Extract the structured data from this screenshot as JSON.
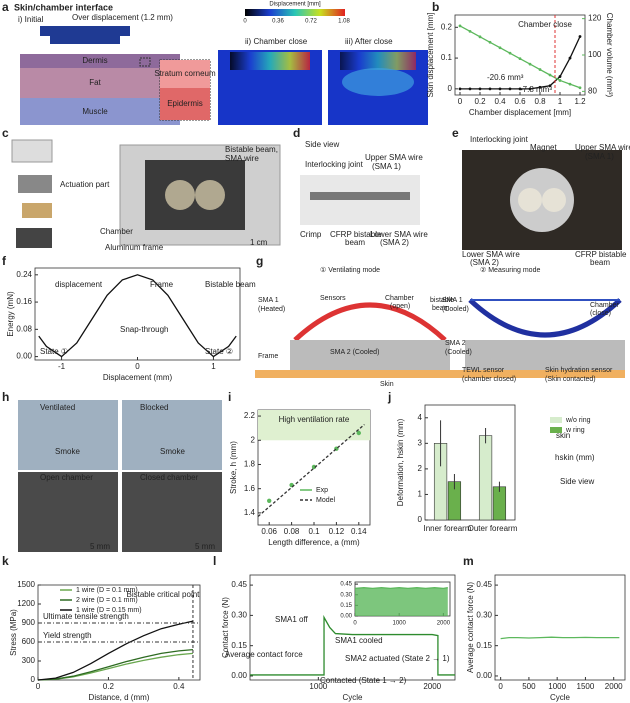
{
  "panel_labels": [
    "a",
    "b",
    "c",
    "d",
    "e",
    "f",
    "g",
    "h",
    "i",
    "j",
    "k",
    "l",
    "m"
  ],
  "a": {
    "title": "Skin/chamber interface",
    "initial": "i) Initial",
    "over": "Over displacement (1.2 mm)",
    "layers": [
      "Dermis",
      "Fat",
      "Muscle"
    ],
    "zoom": [
      "Stratum corneum",
      "Epidermis"
    ],
    "colorbar_title": "Displacement [mm]",
    "colorbar_ticks": [
      0,
      0.36,
      0.72,
      1.08
    ],
    "ii": "ii) Chamber close",
    "iii": "iii) After close"
  },
  "c": {
    "labels": [
      "Actuation part",
      "Bistable beam,",
      "SMA wire",
      "Chamber",
      "Aluminum frame",
      "1 cm"
    ]
  },
  "d": {
    "labels": [
      "Side view",
      "Interlocking joint",
      "Upper SMA wire",
      "(SMA 1)",
      "Crimp",
      "CFRP bistable",
      "beam",
      "Lower SMA wire",
      "(SMA 2)"
    ]
  },
  "e": {
    "labels": [
      "Interlocking joint",
      "Magnet",
      "Upper SMA wire",
      "(SMA 1)",
      "Lower SMA wire",
      "(SMA 2)",
      "CFRP bistable",
      "beam"
    ]
  },
  "g": {
    "labels": [
      "① Ventilating mode",
      "② Measuring mode",
      "SMA 1",
      "(Heated)",
      "Sensors",
      "Chamber",
      "(open)",
      "bistable",
      "beam",
      "SMA 2 (Cooled)",
      "Frame",
      "Skin",
      "SMA 1",
      "(Cooled)",
      "Chamber",
      "(close)",
      "SMA 2",
      "(Cooled)",
      "TEWL sensor",
      "(chamber closed)",
      "Skin hydration sensor",
      "(Skin contacted)"
    ]
  },
  "h": {
    "labels": [
      "Ventilated",
      "Blocked",
      "Smoke",
      "Smoke",
      "Open chamber",
      "Closed chamber",
      "5 mm",
      "5 mm"
    ]
  },
  "chart_data": [
    {
      "type": "line",
      "xlabel": "Chamber displacement [mm]",
      "ylabel": "Skin displacement [mm]",
      "y2label": "Chamber volume (mm³)",
      "x": [
        0,
        0.1,
        0.2,
        0.3,
        0.4,
        0.5,
        0.6,
        0.7,
        0.8,
        0.9,
        1.0,
        1.1,
        1.2
      ],
      "xlim": [
        -0.05,
        1.25
      ],
      "xticks": [
        0,
        0.2,
        0.4,
        0.6,
        0.8,
        1.0,
        1.2
      ],
      "ylim": [
        -0.02,
        0.24
      ],
      "yticks": [
        0,
        0.1,
        0.2
      ],
      "y2lim": [
        78,
        122
      ],
      "y2ticks": [
        80,
        100,
        120
      ],
      "series": [
        {
          "name": "Skin displacement",
          "color": "#111111",
          "values": [
            0,
            0,
            0,
            0,
            0,
            0,
            0,
            0,
            0.005,
            0.01,
            0.04,
            0.1,
            0.17
          ]
        },
        {
          "name": "Chamber volume",
          "color": "#5cb85c",
          "axis": "y2",
          "values": [
            116,
            113,
            110,
            107,
            104,
            101,
            98,
            95,
            92,
            89,
            86,
            84,
            82
          ]
        }
      ],
      "ref_vline": {
        "value": 0.95,
        "label": "Chamber close"
      },
      "annotations": [
        "-20.6 mm³",
        "-7.8 mm³"
      ]
    },
    {
      "type": "line",
      "xlabel": "Displacement (mm)",
      "ylabel": "Energy (mN)",
      "x": [
        -1.3,
        -1.2,
        -1.0,
        -0.8,
        -0.6,
        -0.4,
        -0.2,
        0,
        0.2,
        0.4,
        0.6,
        0.8,
        1.0,
        1.2,
        1.3
      ],
      "xlim": [
        -1.35,
        1.35
      ],
      "xticks": [
        -1,
        0,
        1
      ],
      "ylim": [
        -0.01,
        0.26
      ],
      "yticks": [
        {
          "value": 0,
          "label": "0.00"
        },
        {
          "value": 0.08,
          "label": "0.08"
        },
        {
          "value": 0.16,
          "label": "0.16"
        },
        {
          "value": 0.24,
          "label": "0.24"
        }
      ],
      "series": [
        {
          "name": "Energy",
          "color": "#111111",
          "values": [
            0.06,
            0.03,
            0.0,
            0.04,
            0.11,
            0.18,
            0.225,
            0.24,
            0.225,
            0.18,
            0.11,
            0.04,
            0.0,
            0.03,
            0.06
          ]
        }
      ],
      "annotations": [
        "displacement",
        "Frame",
        "Bistable beam",
        "Snap-through",
        "State ①",
        "State ②"
      ]
    },
    {
      "type": "scatter",
      "xlabel": "Length difference, a (mm)",
      "ylabel": "Stroke, h (mm)",
      "xlim": [
        0.05,
        0.15
      ],
      "xticks": [
        0.06,
        0.08,
        0.1,
        0.12,
        0.14
      ],
      "ylim": [
        1.3,
        2.25
      ],
      "yticks": [
        1.4,
        1.6,
        1.8,
        2.0,
        2.2
      ],
      "series": [
        {
          "name": "Exp",
          "color": "#5cb85c",
          "x": [
            0.06,
            0.08,
            0.1,
            0.12,
            0.14
          ],
          "values": [
            1.5,
            1.63,
            1.78,
            1.93,
            2.06
          ]
        },
        {
          "name": "Model",
          "color": "#333333",
          "dashed": true,
          "x": [
            0.05,
            0.145
          ],
          "values": [
            1.37,
            2.13
          ]
        }
      ],
      "ref_band": {
        "from": 2.0,
        "label": "High ventilation rate"
      },
      "legend": true
    },
    {
      "type": "bar",
      "ylabel": "Deformation, hskin (mm)",
      "categories": [
        "Inner forearm",
        "Outer forearm"
      ],
      "ylim": [
        0,
        4.5
      ],
      "yticks": [
        0,
        1,
        2,
        3,
        4
      ],
      "series": [
        {
          "name": "w/o ring",
          "color": "#d6eccc",
          "values": [
            3.0,
            3.3
          ],
          "errors": [
            0.9,
            0.3
          ]
        },
        {
          "name": "w ring",
          "color": "#6ab04c",
          "values": [
            1.5,
            1.3
          ],
          "errors": [
            0.3,
            0.2
          ]
        }
      ],
      "legend": true,
      "annotations": [
        "skin",
        "hskin (mm)",
        "Side view"
      ]
    },
    {
      "type": "line",
      "xlabel": "Distance, d (mm)",
      "ylabel": "Stress (MPa)",
      "x": [
        0,
        0.05,
        0.1,
        0.15,
        0.2,
        0.25,
        0.3,
        0.35,
        0.4,
        0.44
      ],
      "xlim": [
        0,
        0.46
      ],
      "xticks": [
        0,
        0.2,
        0.4
      ],
      "ylim": [
        0,
        1500
      ],
      "yticks": [
        0,
        300,
        600,
        900,
        1200,
        1500
      ],
      "series": [
        {
          "name": "1 wire (D = 0.1 mm)",
          "color": "#6aa84f",
          "values": [
            0,
            12,
            50,
            110,
            180,
            250,
            310,
            360,
            400,
            420
          ]
        },
        {
          "name": "2 wire (D = 0.1 mm)",
          "color": "#2e6b22",
          "values": [
            0,
            15,
            60,
            130,
            210,
            290,
            360,
            420,
            460,
            480
          ]
        },
        {
          "name": "1 wire (D = 0.15 mm)",
          "color": "#111111",
          "values": [
            0,
            30,
            120,
            260,
            420,
            570,
            700,
            810,
            880,
            930
          ]
        }
      ],
      "ref_lines": [
        {
          "value": 900,
          "label": "Ultimate tensile strength"
        },
        {
          "value": 600,
          "label": "Yield strength"
        }
      ],
      "ref_vline": {
        "value": 0.44,
        "label": "Bistable critical point"
      },
      "legend": true
    },
    {
      "type": "line",
      "xlabel": "Cycle",
      "ylabel": "Contact force (N)",
      "x": [
        400,
        1050,
        1050,
        1100,
        1150,
        1300,
        1600,
        2000,
        2050,
        2050,
        2200
      ],
      "xlim": [
        400,
        2200
      ],
      "xticks": [
        1000,
        2000
      ],
      "ylim": [
        -0.02,
        0.5
      ],
      "yticks": [
        {
          "value": 0,
          "label": "0.00"
        },
        {
          "value": 0.15,
          "label": "0.15"
        },
        {
          "value": 0.3,
          "label": "0.30"
        },
        {
          "value": 0.45,
          "label": "0.45"
        }
      ],
      "series": [
        {
          "name": "Contact force",
          "color": "#2e8b2e",
          "values": [
            0.005,
            0.005,
            0.29,
            0.24,
            0.21,
            0.205,
            0.205,
            0.205,
            0.2,
            0.005,
            0.005
          ]
        }
      ],
      "annotations": [
        "SMA1 off",
        "SMA1 cooled",
        "Average contact force",
        "SMA2 actuated (State 2 → 1)",
        "Contacted (State 1 → 2)"
      ]
    },
    {
      "type": "line",
      "x": [
        0,
        200,
        400,
        600,
        800,
        1000,
        1200,
        1400,
        1600,
        1800,
        2000,
        2100
      ],
      "xlim": [
        0,
        2150
      ],
      "xticks": [
        0,
        1000,
        2000
      ],
      "ylim": [
        0,
        0.48
      ],
      "yticks": [
        {
          "value": 0,
          "label": "0.00"
        },
        {
          "value": 0.15,
          "label": "0.15"
        },
        {
          "value": 0.3,
          "label": "0.30"
        },
        {
          "value": 0.45,
          "label": "0.45"
        }
      ],
      "series": [
        {
          "name": "Inset",
          "color": "#5cb85c",
          "fill": true,
          "values": [
            0.39,
            0.4,
            0.39,
            0.4,
            0.39,
            0.4,
            0.39,
            0.4,
            0.39,
            0.4,
            0.39,
            0.4
          ]
        }
      ]
    },
    {
      "type": "line",
      "xlabel": "Cycle",
      "ylabel": "Average contact force (N)",
      "x": [
        0,
        150,
        300,
        500,
        700,
        900,
        1100,
        1300,
        1500,
        1700,
        1900,
        2100
      ],
      "xlim": [
        -100,
        2200
      ],
      "xticks": [
        0,
        500,
        1000,
        1500,
        2000
      ],
      "ylim": [
        -0.02,
        0.5
      ],
      "yticks": [
        {
          "value": 0,
          "label": "0.00"
        },
        {
          "value": 0.15,
          "label": "0.15"
        },
        {
          "value": 0.3,
          "label": "0.30"
        },
        {
          "value": 0.45,
          "label": "0.45"
        }
      ],
      "series": [
        {
          "name": "Average contact force",
          "color": "#5cb85c",
          "values": [
            0.185,
            0.19,
            0.19,
            0.188,
            0.19,
            0.192,
            0.19,
            0.19,
            0.191,
            0.19,
            0.19,
            0.19
          ]
        }
      ]
    }
  ]
}
